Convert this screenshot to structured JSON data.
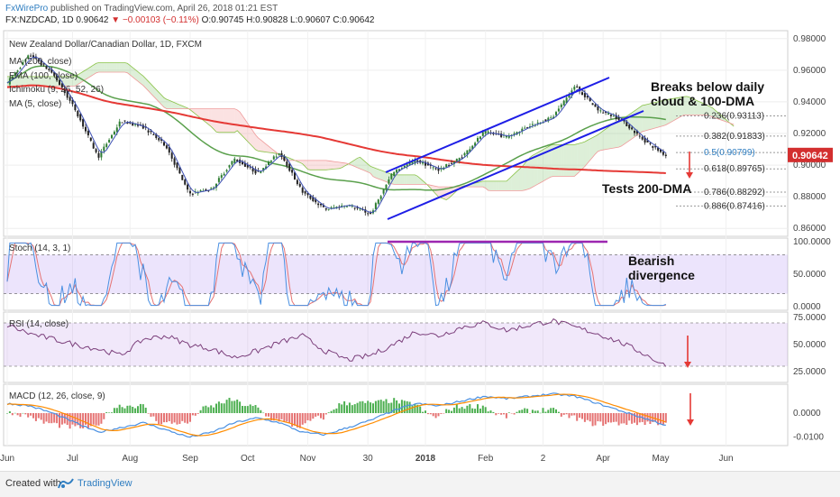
{
  "header": {
    "brand": "FxWirePro",
    "published": "published on TradingView.com, April 26, 2018 01:21 EST",
    "symbol": "FX:NZDCAD, 1D",
    "last": "0.90642",
    "change": "▼ −0.00103 (−0.11%)",
    "ohlc": "O:0.90745 H:0.90828 L:0.90607 C:0.90642"
  },
  "legend": {
    "title": "New Zealand Dollar/Canadian Dollar, 1D, FXCM",
    "ma200": "MA (200, close)",
    "ema": "EMA (100, close)",
    "ichimoku": "Ichimoku (9, 26, 52, 26)",
    "ma5": "MA (5, close)"
  },
  "annotations": {
    "breaks": [
      "Breaks below daily",
      "cloud & 100-DMA"
    ],
    "tests": "Tests 200-DMA",
    "bearish": [
      "Bearish",
      "divergence"
    ]
  },
  "footer": {
    "created": "Created with",
    "tv": "TradingView"
  },
  "colors": {
    "up": "#2e7d32",
    "down": "#222222",
    "ma200": "#e53935",
    "ema": "#5aa04c",
    "ma5": "#3f51b5",
    "channel": "#1e1ee6",
    "stoch_k": "#4a90e2",
    "stoch_d": "#e57373",
    "rsi": "#7b3f7b",
    "macd": "#4a90e2",
    "signal": "#ff8c00",
    "price_tag": "#d32f2f"
  },
  "chart_data": [
    {
      "type": "candlestick",
      "title": "New Zealand Dollar/Canadian Dollar, 1D, FXCM",
      "ylim": [
        0.855,
        0.985
      ],
      "y_ticks": [
        "0.98000",
        "0.96000",
        "0.94000",
        "0.92000",
        "0.90000",
        "0.88000",
        "0.86000"
      ],
      "x_ticks": [
        "Jun",
        "Jul",
        "Aug",
        "Sep",
        "Oct",
        "Nov",
        "30",
        "2018",
        "Feb",
        "2",
        "Apr",
        "May",
        "Jun"
      ],
      "last_price": "0.90642",
      "price_path": [
        0.952,
        0.97,
        0.958,
        0.935,
        0.905,
        0.928,
        0.924,
        0.912,
        0.882,
        0.885,
        0.904,
        0.895,
        0.908,
        0.883,
        0.872,
        0.875,
        0.869,
        0.896,
        0.903,
        0.897,
        0.905,
        0.921,
        0.918,
        0.925,
        0.93,
        0.95,
        0.935,
        0.929,
        0.916,
        0.906
      ],
      "fibonacci": [
        {
          "level": "0.236",
          "price": 0.93113,
          "label": "0.236(0.93113)"
        },
        {
          "level": "0.382",
          "price": 0.91833,
          "label": "0.382(0.91833)"
        },
        {
          "level": "0.5",
          "price": 0.90799,
          "label": "0.5(0.90799)"
        },
        {
          "level": "0.618",
          "price": 0.89765,
          "label": "0.618(0.89765)"
        },
        {
          "level": "0.786",
          "price": 0.88292,
          "label": "0.786(0.88292)"
        },
        {
          "level": "0.886",
          "price": 0.87416,
          "label": "0.886(0.87416)"
        }
      ]
    },
    {
      "type": "line",
      "title": "Stoch (14, 3, 1)",
      "ylim": [
        0,
        100
      ],
      "y_ticks": [
        "100.0000",
        "50.0000",
        "0.0000"
      ]
    },
    {
      "type": "line",
      "title": "RSI (14, close)",
      "ylim": [
        15,
        80
      ],
      "y_ticks": [
        "75.0000",
        "50.0000",
        "25.0000"
      ],
      "values": [
        68,
        60,
        55,
        50,
        46,
        40,
        55,
        58,
        50,
        46,
        38,
        44,
        52,
        58,
        44,
        36,
        40,
        50,
        62,
        58,
        66,
        70,
        63,
        68,
        72,
        66,
        60,
        52,
        42,
        30
      ]
    },
    {
      "type": "line",
      "title": "MACD (12, 26, close, 9)",
      "ylim": [
        -0.0135,
        0.012
      ],
      "y_ticks": [
        "0.0000",
        "-0.0100"
      ],
      "values": [
        0.004,
        0.003,
        0.0,
        -0.004,
        -0.008,
        -0.006,
        -0.004,
        -0.007,
        -0.01,
        -0.008,
        -0.004,
        -0.002,
        -0.004,
        -0.008,
        -0.009,
        -0.006,
        -0.003,
        0.001,
        0.004,
        0.003,
        0.005,
        0.007,
        0.006,
        0.007,
        0.008,
        0.007,
        0.004,
        0.001,
        -0.002,
        -0.005
      ]
    }
  ]
}
